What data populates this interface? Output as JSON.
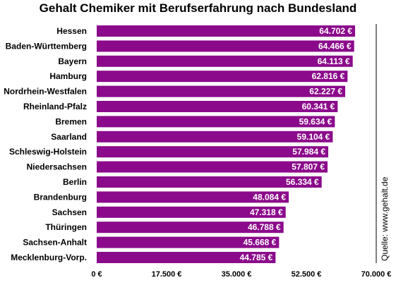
{
  "chart_data": {
    "type": "bar",
    "orientation": "horizontal",
    "title": "Gehalt Chemiker mit Berufserfahrung nach Bundesland",
    "source": "Quelle: www.gehalt.de",
    "bar_color": "#8b0a8b",
    "xlim": [
      0,
      70000
    ],
    "xticks": [
      0,
      17500,
      35000,
      52500,
      70000
    ],
    "xtick_labels": [
      "0 €",
      "17.500 €",
      "35.000 €",
      "52.500 €",
      "70.000 €"
    ],
    "grid": false,
    "categories": [
      "Hessen",
      "Baden-Württemberg",
      "Bayern",
      "Hamburg",
      "Nordrhein-Westfalen",
      "Rheinland-Pfalz",
      "Bremen",
      "Saarland",
      "Schleswig-Holstein",
      "Niedersachsen",
      "Berlin",
      "Brandenburg",
      "Sachsen",
      "Thüringen",
      "Sachsen-Anhalt",
      "Mecklenburg-Vorp."
    ],
    "values": [
      64702,
      64466,
      64113,
      62816,
      62227,
      60341,
      59634,
      59104,
      57984,
      57807,
      56334,
      48084,
      47318,
      46788,
      45668,
      44785
    ],
    "value_labels": [
      "64.702 €",
      "64.466 €",
      "64.113 €",
      "62.816 €",
      "62.227 €",
      "60.341 €",
      "59.634 €",
      "59.104 €",
      "57.984 €",
      "57.807 €",
      "56.334 €",
      "48.084 €",
      "47.318 €",
      "46.788 €",
      "45.668 €",
      "44.785 €"
    ]
  }
}
